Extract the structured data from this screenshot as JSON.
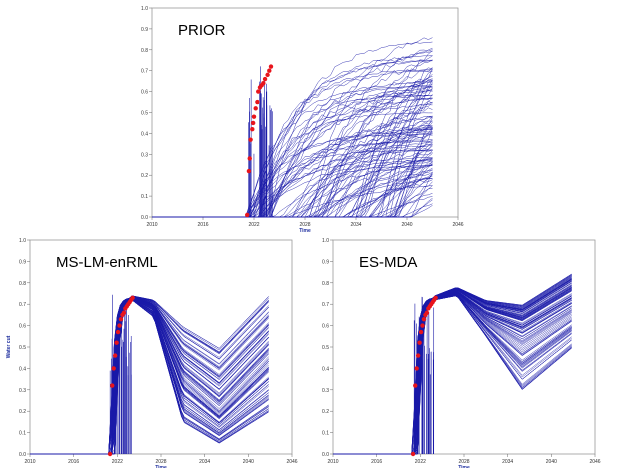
{
  "chart_data": [
    {
      "type": "line",
      "title": "PRIOR",
      "xlabel": "Time",
      "ylabel": "",
      "xlim": [
        2010,
        2046
      ],
      "ylim": [
        0,
        1.0
      ],
      "x_ticks": [
        "2010",
        "2016",
        "2022",
        "2028",
        "2034",
        "2040",
        "2046"
      ],
      "y_ticks": [
        "0.0",
        "0.1",
        "0.2",
        "0.3",
        "0.4",
        "0.5",
        "0.6",
        "0.7",
        "0.8",
        "0.9",
        "1.0"
      ],
      "ensemble": {
        "line_color": "#1a1aa8",
        "data_color": "#e8141c"
      },
      "series": [
        {
          "name": "",
          "x": [
            2021,
            2024,
            2030,
            2036,
            2043
          ],
          "y": [
            0.0,
            0.6,
            0.72,
            0.83,
            0.92
          ]
        },
        {
          "name": "",
          "x": [
            2021,
            2024,
            2030,
            2036,
            2043
          ],
          "y": [
            0.0,
            0.35,
            0.6,
            0.76,
            0.88
          ]
        },
        {
          "name": "",
          "x": [
            2023,
            2026,
            2032,
            2038,
            2043
          ],
          "y": [
            0.0,
            0.15,
            0.45,
            0.68,
            0.82
          ]
        },
        {
          "name": "",
          "x": [
            2027,
            2030,
            2035,
            2040,
            2043
          ],
          "y": [
            0.0,
            0.1,
            0.35,
            0.6,
            0.72
          ]
        },
        {
          "name": "",
          "x": [
            2033,
            2036,
            2040,
            2043
          ],
          "y": [
            0.0,
            0.08,
            0.3,
            0.45
          ]
        }
      ],
      "observed": {
        "x": [
          2021.2,
          2021.4,
          2021.5,
          2021.6,
          2021.8,
          2021.9,
          2022.0,
          2022.2,
          2022.4,
          2022.5,
          2022.7,
          2022.9,
          2023.1,
          2023.3,
          2023.6,
          2023.8,
          2024.0
        ],
        "y": [
          0.01,
          0.22,
          0.28,
          0.37,
          0.42,
          0.45,
          0.48,
          0.52,
          0.55,
          0.6,
          0.62,
          0.63,
          0.64,
          0.66,
          0.68,
          0.7,
          0.72
        ]
      }
    },
    {
      "type": "line",
      "title": "MS-LM-enRML",
      "xlabel": "Time",
      "ylabel": "Water cut",
      "xlim": [
        2010,
        2046
      ],
      "ylim": [
        0,
        1.0
      ],
      "x_ticks": [
        "2010",
        "2016",
        "2022",
        "2028",
        "2034",
        "2040",
        "2046"
      ],
      "y_ticks": [
        "0.0",
        "0.1",
        "0.2",
        "0.3",
        "0.4",
        "0.5",
        "0.6",
        "0.7",
        "0.8",
        "0.9",
        "1.0"
      ],
      "ensemble": {
        "line_color": "#1a1aa8",
        "data_color": "#e8141c"
      },
      "series": [
        {
          "name": "",
          "x": [
            2021,
            2024,
            2027,
            2031,
            2036,
            2043
          ],
          "y": [
            0.0,
            0.74,
            0.72,
            0.6,
            0.5,
            0.75
          ]
        },
        {
          "name": "",
          "x": [
            2021,
            2024,
            2027,
            2031,
            2036,
            2043
          ],
          "y": [
            0.0,
            0.73,
            0.68,
            0.35,
            0.2,
            0.45
          ]
        },
        {
          "name": "",
          "x": [
            2021,
            2024,
            2027,
            2031,
            2036,
            2043
          ],
          "y": [
            0.0,
            0.72,
            0.64,
            0.15,
            0.05,
            0.2
          ]
        }
      ],
      "observed": {
        "x": [
          2021.0,
          2021.3,
          2021.5,
          2021.7,
          2021.9,
          2022.1,
          2022.3,
          2022.5,
          2022.7,
          2022.9,
          2023.1,
          2023.3,
          2023.5,
          2023.7,
          2023.9,
          2024.1
        ],
        "y": [
          0.0,
          0.32,
          0.4,
          0.46,
          0.52,
          0.57,
          0.6,
          0.63,
          0.65,
          0.66,
          0.68,
          0.69,
          0.7,
          0.71,
          0.72,
          0.73
        ]
      }
    },
    {
      "type": "line",
      "title": "ES-MDA",
      "xlabel": "Time",
      "ylabel": "",
      "xlim": [
        2010,
        2046
      ],
      "ylim": [
        0,
        1.0
      ],
      "x_ticks": [
        "2010",
        "2016",
        "2022",
        "2028",
        "2034",
        "2040",
        "2046"
      ],
      "y_ticks": [
        "0.0",
        "0.1",
        "0.2",
        "0.3",
        "0.4",
        "0.5",
        "0.6",
        "0.7",
        "0.8",
        "0.9",
        "1.0"
      ],
      "ensemble": {
        "line_color": "#1a1aa8",
        "data_color": "#e8141c"
      },
      "series": [
        {
          "name": "",
          "x": [
            2021,
            2024,
            2027,
            2031,
            2036,
            2043
          ],
          "y": [
            0.0,
            0.74,
            0.78,
            0.72,
            0.7,
            0.85
          ]
        },
        {
          "name": "",
          "x": [
            2021,
            2024,
            2027,
            2031,
            2036,
            2043
          ],
          "y": [
            0.0,
            0.73,
            0.76,
            0.65,
            0.58,
            0.72
          ]
        },
        {
          "name": "",
          "x": [
            2021,
            2024,
            2027,
            2031,
            2036,
            2043
          ],
          "y": [
            0.0,
            0.72,
            0.74,
            0.55,
            0.3,
            0.5
          ]
        }
      ],
      "observed": {
        "x": [
          2021.0,
          2021.3,
          2021.5,
          2021.7,
          2021.9,
          2022.1,
          2022.3,
          2022.5,
          2022.7,
          2022.9,
          2023.1,
          2023.3,
          2023.5,
          2023.7,
          2023.9,
          2024.1
        ],
        "y": [
          0.0,
          0.32,
          0.4,
          0.46,
          0.52,
          0.57,
          0.6,
          0.63,
          0.65,
          0.66,
          0.68,
          0.69,
          0.7,
          0.71,
          0.72,
          0.73
        ]
      }
    }
  ]
}
